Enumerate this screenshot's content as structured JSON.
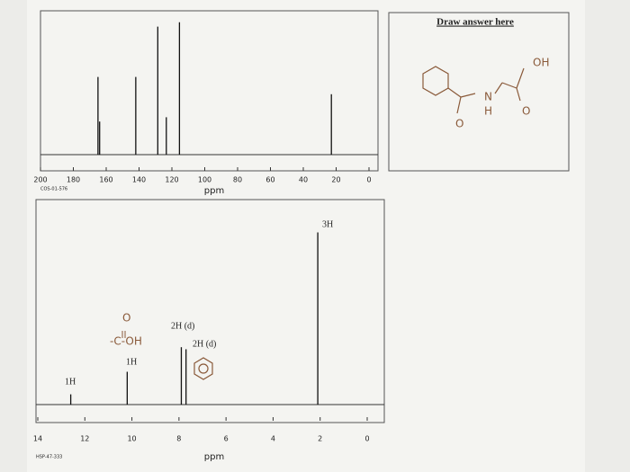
{
  "chart_data": [
    {
      "type": "stem",
      "code": "COS-01-576",
      "x_label": "ppm",
      "xlim": [
        200,
        0
      ],
      "xticks": [
        200,
        180,
        160,
        140,
        120,
        100,
        80,
        60,
        40,
        20,
        0
      ],
      "ylim": [
        0,
        100
      ],
      "x": [
        165,
        164,
        142,
        128.6,
        123.4,
        115.4,
        22.9
      ],
      "values": [
        54,
        23,
        54,
        89,
        26,
        92,
        42
      ]
    },
    {
      "type": "stem",
      "code": "HSP-47-333",
      "x_label": "ppm",
      "xlim": [
        14,
        0
      ],
      "xticks": [
        14,
        12,
        10,
        8,
        6,
        4,
        2,
        0
      ],
      "ylim": [
        0,
        100
      ],
      "x": [
        12.6,
        10.2,
        7.9,
        7.7,
        2.1
      ],
      "values": [
        5,
        16,
        28,
        27,
        84
      ],
      "peak_labels": [
        "1H",
        "1H",
        "2H (d)",
        "2H (d)",
        "3H"
      ],
      "annotations": [
        "O",
        "-C-OH"
      ]
    }
  ],
  "answer_box": {
    "title": "Draw answer here",
    "labels": [
      "OH",
      "N",
      "H",
      "O",
      "O"
    ]
  }
}
